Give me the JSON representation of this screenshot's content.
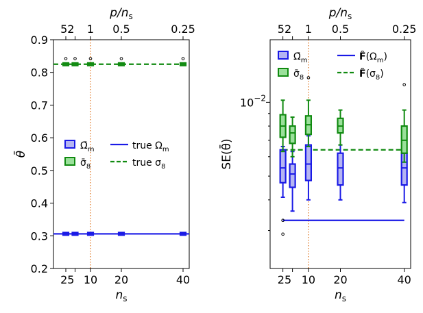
{
  "colors": {
    "omega": "#1a1ae6",
    "sigma": "#108a10",
    "sigma_fill": "#9be09b",
    "omega_fill": "#b5b5f2",
    "guide": "#e07b2a"
  },
  "chart_data": [
    {
      "type": "scatter",
      "panel": "left",
      "top_axis_label": "p/n",
      "top_axis_label_sub": "s",
      "top_ticks": [
        "52",
        "1",
        "0.5",
        "0.25"
      ],
      "xlabel": "n",
      "xlabel_sub": "s",
      "ylabel": "θ̄",
      "x_ticks": [
        "25",
        "10",
        "20",
        "40"
      ],
      "x_tick_positions": [
        2.5,
        10,
        20,
        40
      ],
      "xlim": [
        -2,
        42
      ],
      "ylim": [
        0.2,
        0.9
      ],
      "y_ticks": [
        "0.2",
        "0.3",
        "0.4",
        "0.5",
        "0.6",
        "0.7",
        "0.8",
        "0.9"
      ],
      "x": [
        2,
        5,
        10,
        20,
        40
      ],
      "guide_x": 10,
      "series": [
        {
          "name": "Ω̄m",
          "median": [
            0.306,
            0.306,
            0.306,
            0.306,
            0.306
          ],
          "q1": [
            0.302,
            0.302,
            0.302,
            0.302,
            0.302
          ],
          "q3": [
            0.31,
            0.31,
            0.31,
            0.31,
            0.31
          ],
          "outliers": []
        },
        {
          "name": "σ̄8",
          "median": [
            0.825,
            0.825,
            0.825,
            0.825,
            0.825
          ],
          "q1": [
            0.821,
            0.821,
            0.821,
            0.821,
            0.821
          ],
          "q3": [
            0.829,
            0.829,
            0.829,
            0.829,
            0.829
          ],
          "outliers": [
            [
              2,
              0.842
            ],
            [
              5,
              0.842
            ],
            [
              10,
              0.842
            ],
            [
              20,
              0.842
            ],
            [
              40,
              0.842
            ]
          ]
        }
      ],
      "true_lines": [
        {
          "name": "true Ωm",
          "value": 0.306,
          "style": "solid"
        },
        {
          "name": "true σ8",
          "value": 0.825,
          "style": "dashed"
        }
      ],
      "legend": {
        "entries": [
          {
            "kind": "box",
            "series": "omega",
            "label": "Ω̄",
            "sub": "m"
          },
          {
            "kind": "box",
            "series": "sigma",
            "label": "σ̄",
            "sub": "8"
          },
          {
            "kind": "line",
            "series": "omega",
            "label": "true Ω",
            "sub": "m"
          },
          {
            "kind": "dashed",
            "series": "sigma",
            "label": "true σ",
            "sub": "8"
          }
        ],
        "placement": "center-left"
      }
    },
    {
      "type": "scatter",
      "panel": "right",
      "scale": "log",
      "top_axis_label": "p/n",
      "top_axis_label_sub": "s",
      "top_ticks": [
        "52",
        "1",
        "0.5",
        "0.25"
      ],
      "xlabel": "n",
      "xlabel_sub": "s",
      "ylabel": "SE(θ̄)",
      "x_ticks": [
        "25",
        "10",
        "20",
        "40"
      ],
      "x_tick_positions": [
        2.5,
        10,
        20,
        40
      ],
      "xlim": [
        -2,
        42
      ],
      "ylim": [
        0.0021,
        0.018
      ],
      "y_tick_label_base": "10",
      "y_tick_label_exp": "−2",
      "y_tick_value": 0.01,
      "x": [
        2,
        5,
        10,
        20,
        40
      ],
      "guide_x": 10,
      "series": [
        {
          "name": "Ω̄m",
          "median": [
            0.0054,
            0.0051,
            0.0056,
            0.0054,
            0.0054
          ],
          "q1": [
            0.0047,
            0.0045,
            0.0048,
            0.0046,
            0.0046
          ],
          "q3": [
            0.0064,
            0.0056,
            0.0067,
            0.0062,
            0.0062
          ],
          "whislo": [
            0.0041,
            0.0036,
            0.004,
            0.004,
            0.0039
          ],
          "whishi": [
            0.0066,
            0.0063,
            0.0073,
            0.0067,
            0.0072
          ],
          "outliers": [
            [
              2,
              0.0033
            ],
            [
              2,
              0.0029
            ]
          ]
        },
        {
          "name": "σ̄8",
          "median": [
            0.008,
            0.0075,
            0.0081,
            0.008,
            0.007
          ],
          "q1": [
            0.0072,
            0.0068,
            0.0074,
            0.0075,
            0.0062
          ],
          "q3": [
            0.0089,
            0.008,
            0.0088,
            0.0086,
            0.008
          ],
          "whislo": [
            0.0063,
            0.006,
            0.0066,
            0.0067,
            0.0057
          ],
          "whishi": [
            0.0102,
            0.0087,
            0.0102,
            0.0093,
            0.0093
          ],
          "outliers": [
            [
              10,
              0.0126
            ],
            [
              40,
              0.0118
            ]
          ]
        }
      ],
      "reference_lines": [
        {
          "name": "F̂(Ωm)",
          "value": 0.0033,
          "style": "solid",
          "x_start": 2
        },
        {
          "name": "F̂(σ8)",
          "value": 0.0064,
          "style": "dashed",
          "x_start": 2
        }
      ],
      "legend": {
        "entries": [
          {
            "kind": "box",
            "series": "omega",
            "label": "Ω̄",
            "sub": "m"
          },
          {
            "kind": "box",
            "series": "sigma",
            "label": "σ̄",
            "sub": "8"
          },
          {
            "kind": "line",
            "series": "omega",
            "label": "F̂",
            "paren": "(Ω",
            "sub": "m",
            "close": ")"
          },
          {
            "kind": "dashed",
            "series": "sigma",
            "label": "F̂",
            "paren": "(σ",
            "sub": "8",
            "close": ")"
          }
        ],
        "placement": "top"
      }
    }
  ]
}
